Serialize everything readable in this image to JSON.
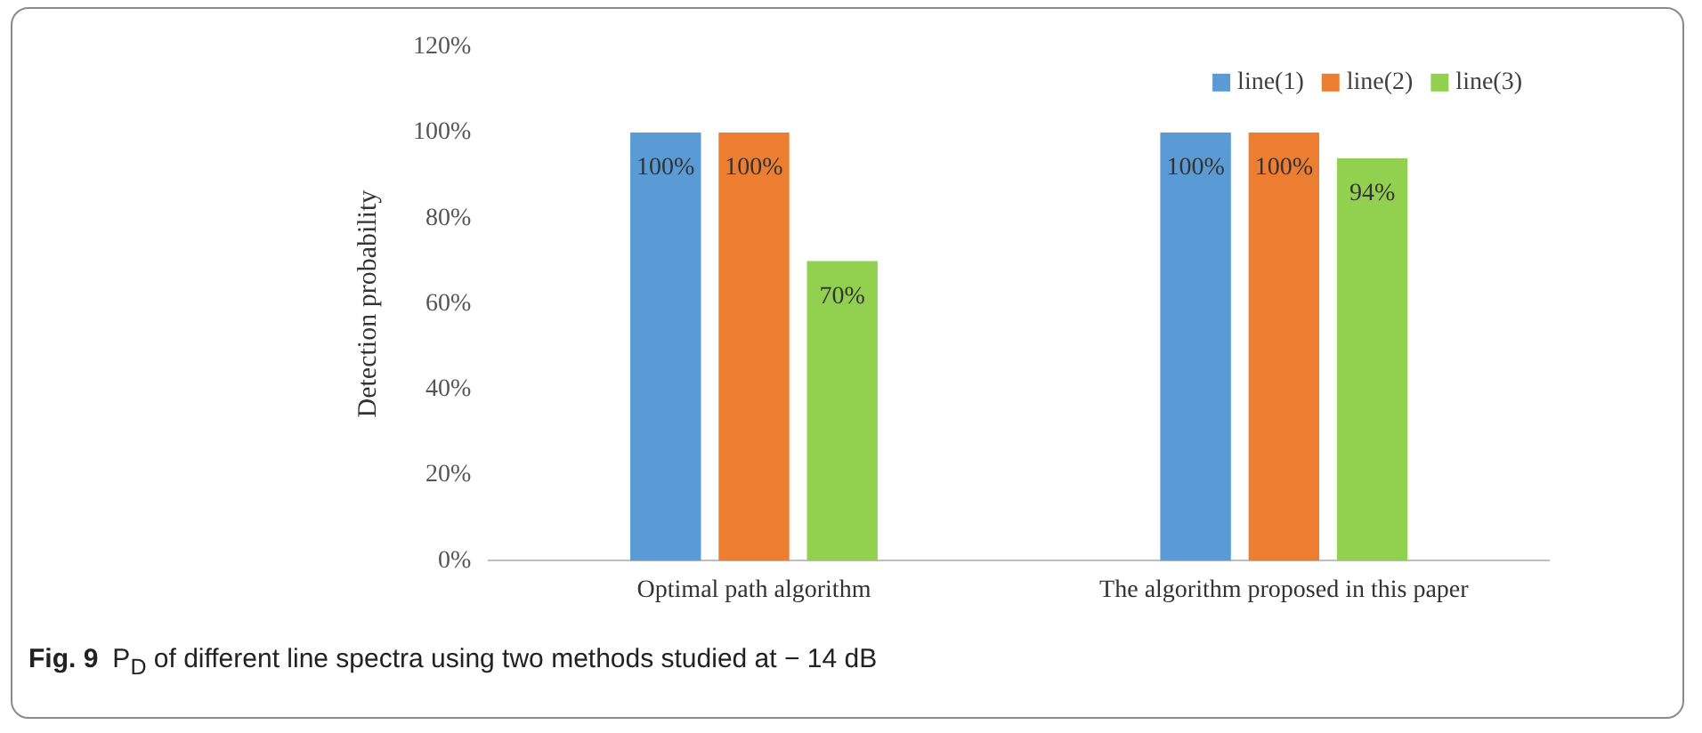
{
  "chart_data": {
    "type": "bar",
    "title": "Fig. 9",
    "ylabel": "Detection probability",
    "categories": [
      "Optimal path algorithm",
      "The algorithm proposed in this paper"
    ],
    "series": [
      {
        "name": "line(1)",
        "color": "#5b9bd5",
        "values": [
          100,
          100
        ],
        "value_labels": [
          "100%",
          "100%"
        ]
      },
      {
        "name": "line(2)",
        "color": "#ed7d31",
        "values": [
          100,
          100
        ],
        "value_labels": [
          "100%",
          "100%"
        ]
      },
      {
        "name": "line(3)",
        "color": "#92d050",
        "values": [
          70,
          94
        ],
        "value_labels": [
          "70%",
          "94%"
        ]
      }
    ],
    "ylim": [
      0,
      120
    ],
    "yticks": [
      {
        "value": 0,
        "label": "0%"
      },
      {
        "value": 20,
        "label": "20%"
      },
      {
        "value": 40,
        "label": "40%"
      },
      {
        "value": 60,
        "label": "60%"
      },
      {
        "value": 80,
        "label": "80%"
      },
      {
        "value": 100,
        "label": "100%"
      },
      {
        "value": 120,
        "label": "120%"
      }
    ],
    "grid": false,
    "legend": "top right",
    "annotations": [
      "P$_{D}$ of different line spectra using two methods studied at − 14 dB"
    ]
  }
}
